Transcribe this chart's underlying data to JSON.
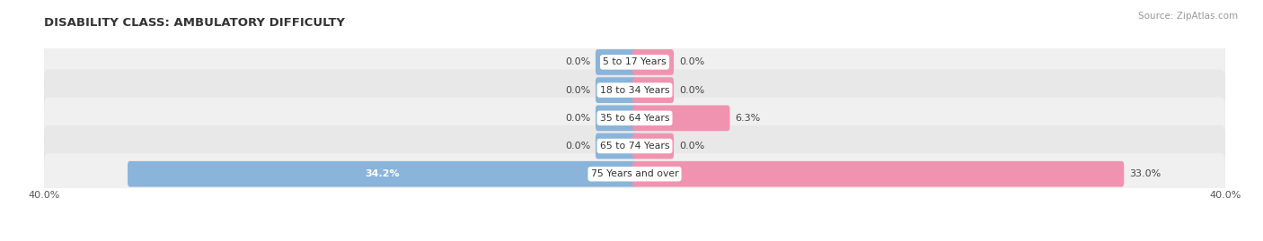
{
  "title": "DISABILITY CLASS: AMBULATORY DIFFICULTY",
  "source": "Source: ZipAtlas.com",
  "categories": [
    "5 to 17 Years",
    "18 to 34 Years",
    "35 to 64 Years",
    "65 to 74 Years",
    "75 Years and over"
  ],
  "male_values": [
    0.0,
    0.0,
    0.0,
    0.0,
    34.2
  ],
  "female_values": [
    0.0,
    0.0,
    6.3,
    0.0,
    33.0
  ],
  "max_val": 40.0,
  "min_bar_width": 2.5,
  "male_color": "#8ab4d9",
  "female_color": "#f093b0",
  "row_bg_color_odd": "#f0f0f0",
  "row_bg_color_even": "#e8e8e8",
  "row_border_color": "#d0d0d0",
  "title_fontsize": 9.5,
  "label_fontsize": 8,
  "value_fontsize": 8,
  "source_fontsize": 7.5,
  "legend_fontsize": 8
}
